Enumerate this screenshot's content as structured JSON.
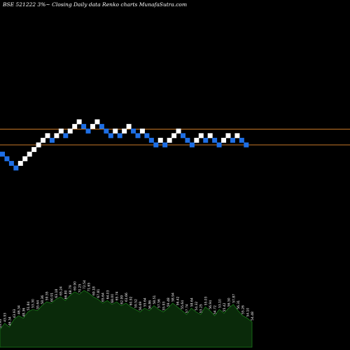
{
  "title": "BSE 521222  3%~  Closing Daily data  Renko  charts MunafaSutra.com",
  "colors": {
    "background": "#000000",
    "up_brick": "#ffffff",
    "down_brick": "#1e6fe6",
    "level_line": "#c87828",
    "volume_fill": "#0a2a0a",
    "volume_line": "#1a7a1a",
    "volume_label": "#ffffff"
  },
  "chart_data": {
    "type": "renko",
    "title": "BSE 521222  3%~  Closing Daily data  Renko  charts MunafaSutra.com",
    "brick_size": "3%",
    "bricks": [
      {
        "dir": "down",
        "level": 9
      },
      {
        "dir": "down",
        "level": 8
      },
      {
        "dir": "down",
        "level": 7
      },
      {
        "dir": "down",
        "level": 6
      },
      {
        "dir": "up",
        "level": 7
      },
      {
        "dir": "up",
        "level": 8
      },
      {
        "dir": "up",
        "level": 9
      },
      {
        "dir": "up",
        "level": 10
      },
      {
        "dir": "up",
        "level": 11
      },
      {
        "dir": "up",
        "level": 12
      },
      {
        "dir": "up",
        "level": 13
      },
      {
        "dir": "down",
        "level": 12
      },
      {
        "dir": "up",
        "level": 13
      },
      {
        "dir": "up",
        "level": 14
      },
      {
        "dir": "down",
        "level": 13
      },
      {
        "dir": "up",
        "level": 14
      },
      {
        "dir": "up",
        "level": 15
      },
      {
        "dir": "up",
        "level": 16
      },
      {
        "dir": "down",
        "level": 15
      },
      {
        "dir": "down",
        "level": 14
      },
      {
        "dir": "up",
        "level": 15
      },
      {
        "dir": "up",
        "level": 16
      },
      {
        "dir": "down",
        "level": 15
      },
      {
        "dir": "down",
        "level": 14
      },
      {
        "dir": "down",
        "level": 13
      },
      {
        "dir": "up",
        "level": 14
      },
      {
        "dir": "down",
        "level": 13
      },
      {
        "dir": "up",
        "level": 14
      },
      {
        "dir": "up",
        "level": 15
      },
      {
        "dir": "down",
        "level": 14
      },
      {
        "dir": "down",
        "level": 13
      },
      {
        "dir": "up",
        "level": 14
      },
      {
        "dir": "down",
        "level": 13
      },
      {
        "dir": "down",
        "level": 12
      },
      {
        "dir": "down",
        "level": 11
      },
      {
        "dir": "up",
        "level": 12
      },
      {
        "dir": "down",
        "level": 11
      },
      {
        "dir": "up",
        "level": 12
      },
      {
        "dir": "up",
        "level": 13
      },
      {
        "dir": "up",
        "level": 14
      },
      {
        "dir": "down",
        "level": 13
      },
      {
        "dir": "down",
        "level": 12
      },
      {
        "dir": "down",
        "level": 11
      },
      {
        "dir": "up",
        "level": 12
      },
      {
        "dir": "up",
        "level": 13
      },
      {
        "dir": "down",
        "level": 12
      },
      {
        "dir": "up",
        "level": 13
      },
      {
        "dir": "down",
        "level": 12
      },
      {
        "dir": "down",
        "level": 11
      },
      {
        "dir": "up",
        "level": 12
      },
      {
        "dir": "up",
        "level": 13
      },
      {
        "dir": "down",
        "level": 12
      },
      {
        "dir": "up",
        "level": 13
      },
      {
        "dir": "down",
        "level": 12
      },
      {
        "dir": "down",
        "level": 11
      }
    ],
    "level_lines": [
      14.4,
      11.0
    ],
    "volume": {
      "values": [
        28,
        38,
        32,
        44,
        50,
        46,
        56,
        60,
        58,
        66,
        72,
        70,
        76,
        80,
        74,
        82,
        88,
        84,
        90,
        86,
        80,
        76,
        70,
        74,
        68,
        72,
        66,
        70,
        64,
        60,
        56,
        62,
        58,
        66,
        60,
        56,
        62,
        70,
        64,
        58,
        52,
        62,
        56,
        52,
        64,
        58,
        50,
        60,
        54,
        62,
        68,
        58,
        50,
        46,
        40
      ],
      "labels": [
        "43.93",
        "43.93",
        "46.34",
        "43.93",
        "46.34",
        "48.36",
        "51.84",
        "53.30",
        "55.64",
        "58.36",
        "59.55",
        "60.91",
        "63.18",
        "65.24",
        "66.80",
        "68.79",
        "69.90",
        "70.25",
        "72.54",
        "71.65",
        "69.18",
        "67.81",
        "65.64",
        "64.03",
        "68.00",
        "65.74",
        "62.99",
        "61.66",
        "60.92",
        "59.52",
        "56.69",
        "55.64",
        "56.86",
        "58.51",
        "57.56",
        "55.93",
        "59.48",
        "58.94",
        "56.42",
        "55.64",
        "57.74",
        "58.64",
        "54.32",
        "53.25",
        "55.03",
        "56.94",
        "54.72",
        "53.10",
        "55.42",
        "56.50",
        "57.87",
        "56.31",
        "55.26",
        "54.10",
        "54.48"
      ]
    }
  }
}
